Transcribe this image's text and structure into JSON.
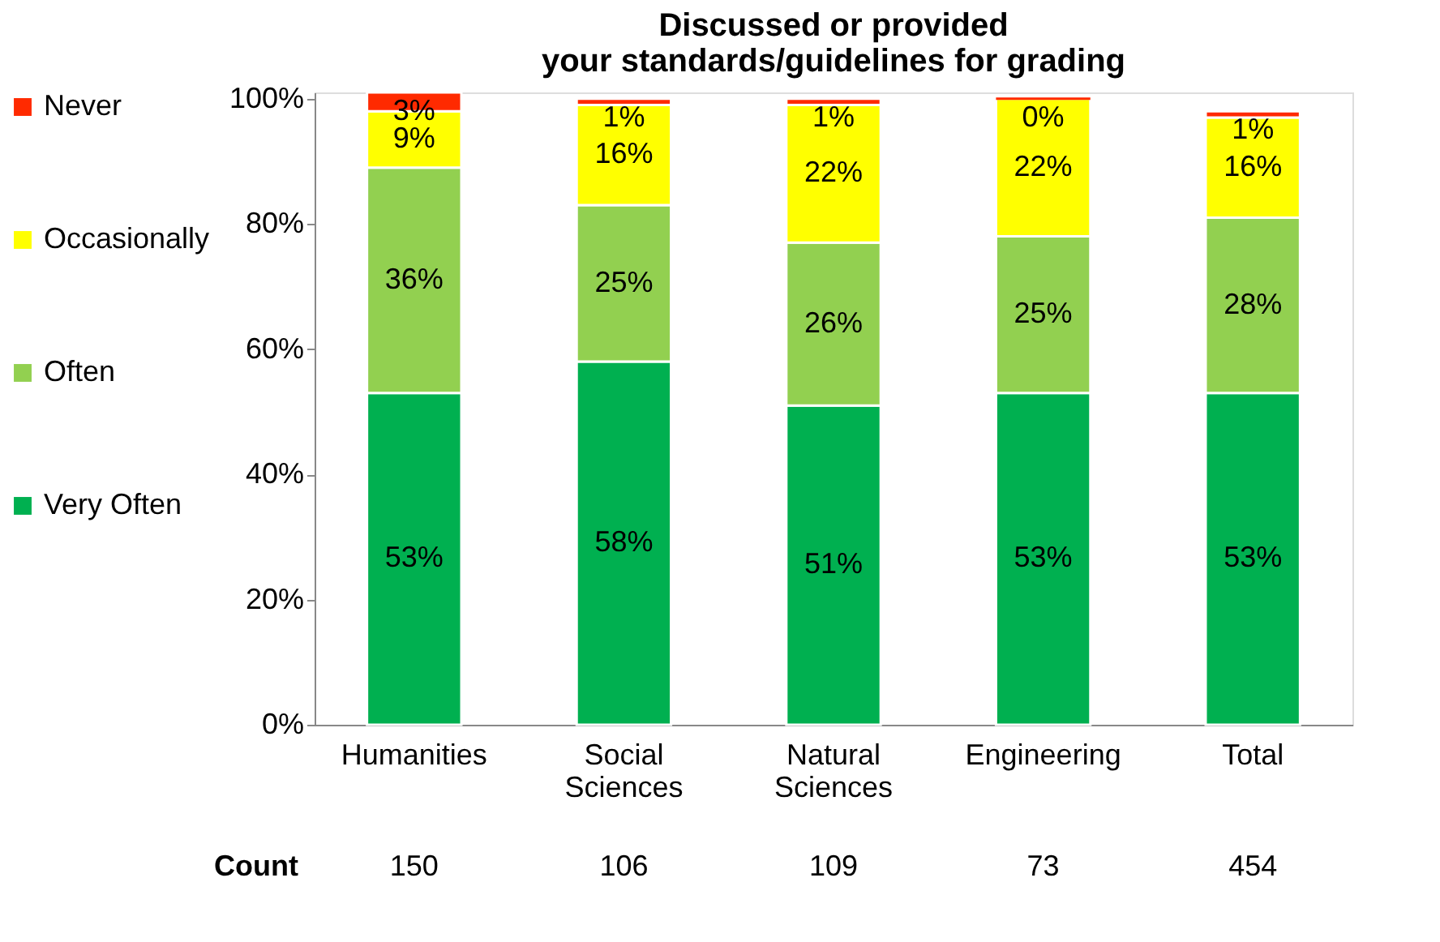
{
  "chart_data": {
    "type": "bar",
    "stacked": true,
    "title": "Discussed or provided\nyour standards/guidelines for grading",
    "categories": [
      "Humanities",
      "Social Sciences",
      "Natural Sciences",
      "Engineering",
      "Total"
    ],
    "series": [
      {
        "name": "Very Often",
        "color": "#00b050",
        "values": [
          53,
          58,
          51,
          53,
          53
        ],
        "value_labels": [
          "53%",
          "58%",
          "51%",
          "53%",
          "53%"
        ]
      },
      {
        "name": "Often",
        "color": "#92d050",
        "values": [
          36,
          25,
          26,
          25,
          28
        ],
        "value_labels": [
          "36%",
          "25%",
          "26%",
          "25%",
          "28%"
        ]
      },
      {
        "name": "Occasionally",
        "color": "#ffff00",
        "values": [
          9,
          16,
          22,
          22,
          16
        ],
        "value_labels": [
          "9%",
          "16%",
          "22%",
          "22%",
          "16%"
        ]
      },
      {
        "name": "Never",
        "color": "#ff2a00",
        "values": [
          3,
          1,
          1,
          0,
          1
        ],
        "value_labels": [
          "3%",
          "1%",
          "1%",
          "0%",
          "1%"
        ]
      }
    ],
    "ylim": [
      0,
      101
    ],
    "yticks": [
      {
        "value": 0,
        "label": "0%"
      },
      {
        "value": 20,
        "label": "20%"
      },
      {
        "value": 40,
        "label": "40%"
      },
      {
        "value": 60,
        "label": "60%"
      },
      {
        "value": 80,
        "label": "80%"
      },
      {
        "value": 100,
        "label": "100%"
      }
    ],
    "grid": false,
    "legend": "left",
    "annotations": [
      "Count",
      "150",
      "106",
      "109",
      "73",
      "454"
    ]
  }
}
